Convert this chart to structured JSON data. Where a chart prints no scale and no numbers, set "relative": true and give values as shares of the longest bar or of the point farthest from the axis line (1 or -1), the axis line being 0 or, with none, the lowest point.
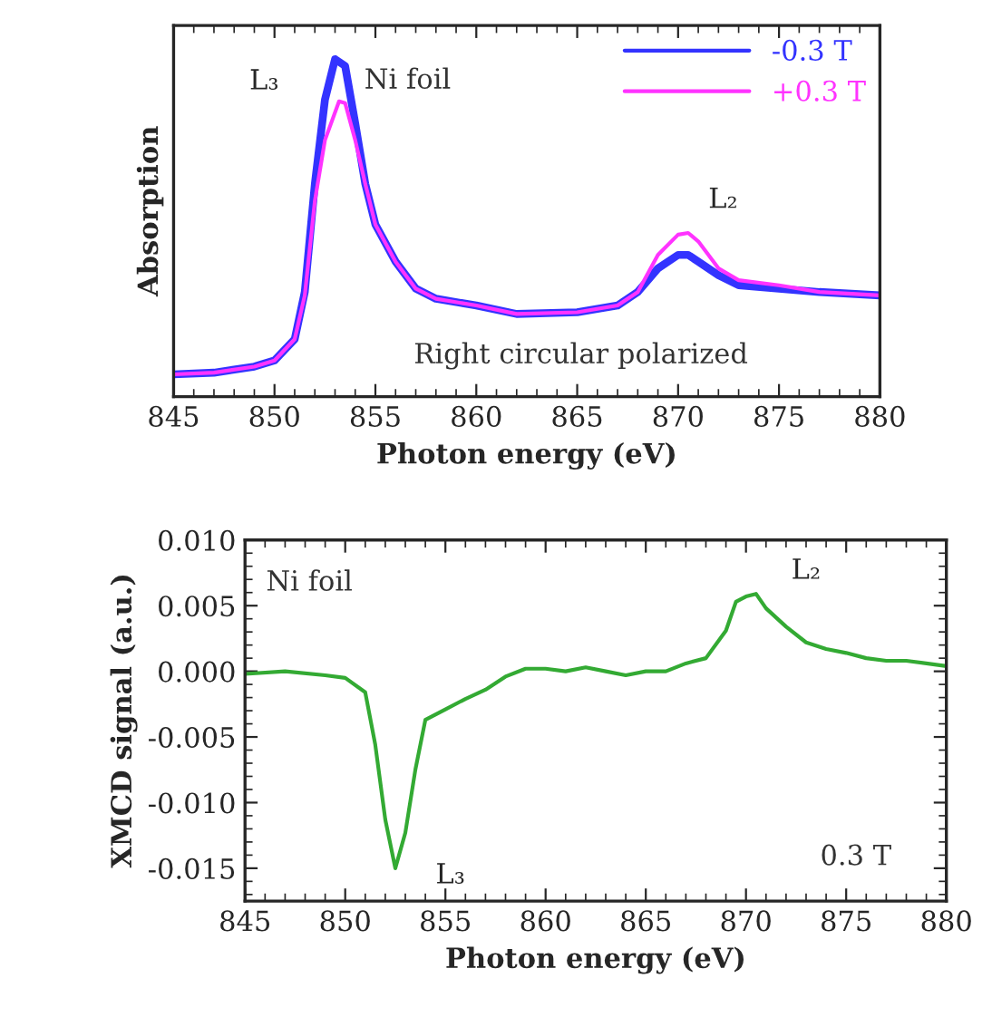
{
  "chart_data": [
    {
      "type": "line",
      "relative": true,
      "xlabel": "Photon energy (eV)",
      "ylabel": "Absorption",
      "xlim": [
        845,
        880
      ],
      "xticks": [
        845,
        850,
        855,
        860,
        865,
        870,
        875,
        880
      ],
      "tick_labels": "x",
      "legend": "top right",
      "grid": false,
      "series": [
        {
          "name": "-0.3 T",
          "color": "#3333ff",
          "x": [
            845,
            847,
            849,
            850,
            851,
            851.5,
            852,
            852.5,
            853,
            853.5,
            854,
            854.5,
            855,
            856,
            857,
            858,
            860,
            862,
            865,
            867,
            868,
            869,
            870,
            870.5,
            871,
            872,
            873,
            875,
            877,
            880
          ],
          "values": [
            0.066,
            0.071,
            0.089,
            0.107,
            0.17,
            0.31,
            0.63,
            0.88,
            1.0,
            0.98,
            0.81,
            0.63,
            0.51,
            0.4,
            0.32,
            0.29,
            0.27,
            0.245,
            0.25,
            0.27,
            0.31,
            0.38,
            0.42,
            0.42,
            0.4,
            0.36,
            0.33,
            0.32,
            0.31,
            0.3
          ]
        },
        {
          "name": "+0.3 T",
          "color": "#ff33ff",
          "x": [
            845,
            847,
            849,
            850,
            851,
            851.5,
            852,
            852.5,
            853.2,
            853.5,
            854,
            854.5,
            855,
            856,
            857,
            858,
            860,
            862,
            865,
            867,
            868,
            869,
            870,
            870.5,
            871,
            872,
            873,
            875,
            877,
            880
          ],
          "values": [
            0.066,
            0.071,
            0.089,
            0.107,
            0.17,
            0.3,
            0.58,
            0.76,
            0.875,
            0.87,
            0.76,
            0.63,
            0.51,
            0.4,
            0.32,
            0.29,
            0.27,
            0.245,
            0.25,
            0.27,
            0.31,
            0.42,
            0.48,
            0.485,
            0.46,
            0.38,
            0.345,
            0.33,
            0.31,
            0.3
          ]
        }
      ],
      "annotations": [
        {
          "text": "L₃",
          "x": 853,
          "y": 1.0
        },
        {
          "text": "L₂",
          "x": 870.5,
          "y": 0.485
        },
        "Ni foil",
        "Right circular polarized"
      ]
    },
    {
      "type": "line",
      "xlabel": "Photon energy (eV)",
      "ylabel": "XMCD signal (a.u.)",
      "xlim": [
        845,
        880
      ],
      "xticks": [
        845,
        850,
        855,
        860,
        865,
        870,
        875,
        880
      ],
      "ylim": [
        -0.0175,
        0.01
      ],
      "yticks": [
        {
          "value": -0.015,
          "label": "-0.015"
        },
        {
          "value": -0.01,
          "label": "-0.010"
        },
        {
          "value": -0.005,
          "label": "-0.005"
        },
        {
          "value": 0,
          "label": "0.000"
        },
        {
          "value": 0.005,
          "label": "0.005"
        },
        {
          "value": 0.01,
          "label": "0.010"
        }
      ],
      "grid": false,
      "series": [
        {
          "color": "#33aa33",
          "x": [
            845,
            847,
            849,
            850,
            851,
            851.5,
            852,
            852.5,
            853,
            853.5,
            854,
            855,
            856,
            857,
            858,
            859,
            860,
            861,
            862,
            863,
            864,
            865,
            866,
            867,
            868,
            869,
            869.5,
            870,
            870.5,
            871,
            872,
            873,
            874,
            875,
            876,
            877,
            878,
            880
          ],
          "values": [
            -0.0002,
            0.0,
            -0.0003,
            -0.0005,
            -0.0016,
            -0.0056,
            -0.0113,
            -0.015,
            -0.0123,
            -0.0075,
            -0.0037,
            -0.0029,
            -0.0021,
            -0.0014,
            -0.0004,
            0.0002,
            0.0002,
            0.0,
            0.0003,
            0.0,
            -0.0003,
            0.0,
            0.0,
            0.0006,
            0.001,
            0.0031,
            0.0053,
            0.0057,
            0.0059,
            0.0048,
            0.0034,
            0.0022,
            0.0017,
            0.0014,
            0.001,
            0.0008,
            0.0008,
            0.0004
          ]
        }
      ],
      "annotations": [
        {
          "text": "L₃",
          "x": 852.5,
          "y": -0.015
        },
        {
          "text": "L₂",
          "x": 870.5,
          "y": 0.0059
        },
        "Ni foil",
        "0.3 T"
      ]
    }
  ]
}
